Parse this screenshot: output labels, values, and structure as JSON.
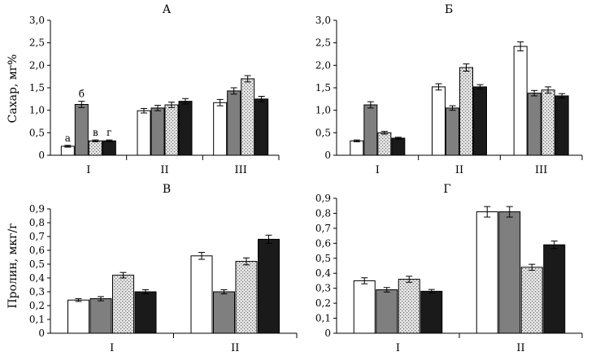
{
  "figure": {
    "title": ""
  },
  "colors": {
    "bar_outline": "#000000",
    "white": "#ffffff",
    "gray": "#7f7f7f",
    "black": "#1a1a1a",
    "dotted_bg": "#e6e6e6",
    "dotted_dot": "#6a6a6a"
  },
  "chart_data": [
    {
      "type": "bar",
      "panel": "A",
      "title": "А",
      "ylabel": "Сахар, мг%",
      "xlabel": "",
      "categories": [
        "I",
        "II",
        "III"
      ],
      "ylim": [
        0,
        3.0
      ],
      "yticks": [
        0,
        0.5,
        1.0,
        1.5,
        2.0,
        2.5,
        3.0
      ],
      "ytick_labels": [
        "0",
        "0,5",
        "1,0",
        "1,5",
        "2,0",
        "2,5",
        "3,0"
      ],
      "series": [
        {
          "name": "а",
          "fill": "white",
          "values": [
            0.2,
            0.99,
            1.17
          ],
          "errors": [
            0.02,
            0.05,
            0.07
          ]
        },
        {
          "name": "б",
          "fill": "gray",
          "values": [
            1.13,
            1.05,
            1.43
          ],
          "errors": [
            0.07,
            0.06,
            0.07
          ]
        },
        {
          "name": "в",
          "fill": "dotted",
          "values": [
            0.32,
            1.12,
            1.7
          ],
          "errors": [
            0.02,
            0.06,
            0.07
          ]
        },
        {
          "name": "г",
          "fill": "black",
          "values": [
            0.32,
            1.2,
            1.25
          ],
          "errors": [
            0.02,
            0.06,
            0.06
          ]
        }
      ],
      "annotations": [
        "а",
        "б",
        "в",
        "г"
      ]
    },
    {
      "type": "bar",
      "panel": "B",
      "title": "Б",
      "ylabel": "",
      "xlabel": "",
      "categories": [
        "I",
        "II",
        "III"
      ],
      "ylim": [
        0,
        3.0
      ],
      "yticks": [
        0,
        0.5,
        1.0,
        1.5,
        2.0,
        2.5,
        3.0
      ],
      "ytick_labels": [
        "0",
        "0,5",
        "1,0",
        "1,5",
        "2,0",
        "2,5",
        "3,0"
      ],
      "series": [
        {
          "name": "white",
          "fill": "white",
          "values": [
            0.32,
            1.52,
            2.42
          ],
          "errors": [
            0.02,
            0.07,
            0.1
          ]
        },
        {
          "name": "gray",
          "fill": "gray",
          "values": [
            1.12,
            1.05,
            1.38
          ],
          "errors": [
            0.07,
            0.05,
            0.06
          ]
        },
        {
          "name": "dotted",
          "fill": "dotted",
          "values": [
            0.5,
            1.95,
            1.45
          ],
          "errors": [
            0.03,
            0.08,
            0.07
          ]
        },
        {
          "name": "black",
          "fill": "black",
          "values": [
            0.38,
            1.52,
            1.32
          ],
          "errors": [
            0.02,
            0.05,
            0.05
          ]
        }
      ]
    },
    {
      "type": "bar",
      "panel": "C",
      "title": "В",
      "ylabel": "Пролин, мкг/г",
      "xlabel": "",
      "categories": [
        "I",
        "II"
      ],
      "ylim": [
        0,
        0.9
      ],
      "yticks": [
        0,
        0.1,
        0.2,
        0.3,
        0.4,
        0.5,
        0.6,
        0.7,
        0.8,
        0.9
      ],
      "ytick_labels": [
        "0",
        "0,1",
        "0,2",
        "0,3",
        "0,4",
        "0,5",
        "0,6",
        "0,7",
        "0,8",
        "0,9"
      ],
      "series": [
        {
          "name": "white",
          "fill": "white",
          "values": [
            0.24,
            0.56
          ],
          "errors": [
            0.01,
            0.025
          ]
        },
        {
          "name": "gray",
          "fill": "gray",
          "values": [
            0.25,
            0.3
          ],
          "errors": [
            0.015,
            0.015
          ]
        },
        {
          "name": "dotted",
          "fill": "dotted",
          "values": [
            0.42,
            0.52
          ],
          "errors": [
            0.02,
            0.025
          ]
        },
        {
          "name": "black",
          "fill": "black",
          "values": [
            0.3,
            0.68
          ],
          "errors": [
            0.015,
            0.03
          ]
        }
      ]
    },
    {
      "type": "bar",
      "panel": "D",
      "title": "Г",
      "ylabel": "",
      "xlabel": "",
      "categories": [
        "I",
        "II"
      ],
      "ylim": [
        0,
        0.9
      ],
      "yticks": [
        0,
        0.1,
        0.2,
        0.3,
        0.4,
        0.5,
        0.6,
        0.7,
        0.8,
        0.9
      ],
      "ytick_labels": [
        "0",
        "0,1",
        "0,2",
        "0,3",
        "0,4",
        "0,5",
        "0,6",
        "0,7",
        "0,8",
        "0,9"
      ],
      "series": [
        {
          "name": "white",
          "fill": "white",
          "values": [
            0.35,
            0.81
          ],
          "errors": [
            0.02,
            0.035
          ]
        },
        {
          "name": "gray",
          "fill": "gray",
          "values": [
            0.29,
            0.81
          ],
          "errors": [
            0.015,
            0.035
          ]
        },
        {
          "name": "dotted",
          "fill": "dotted",
          "values": [
            0.36,
            0.44
          ],
          "errors": [
            0.02,
            0.02
          ]
        },
        {
          "name": "black",
          "fill": "black",
          "values": [
            0.28,
            0.59
          ],
          "errors": [
            0.012,
            0.025
          ]
        }
      ]
    }
  ]
}
